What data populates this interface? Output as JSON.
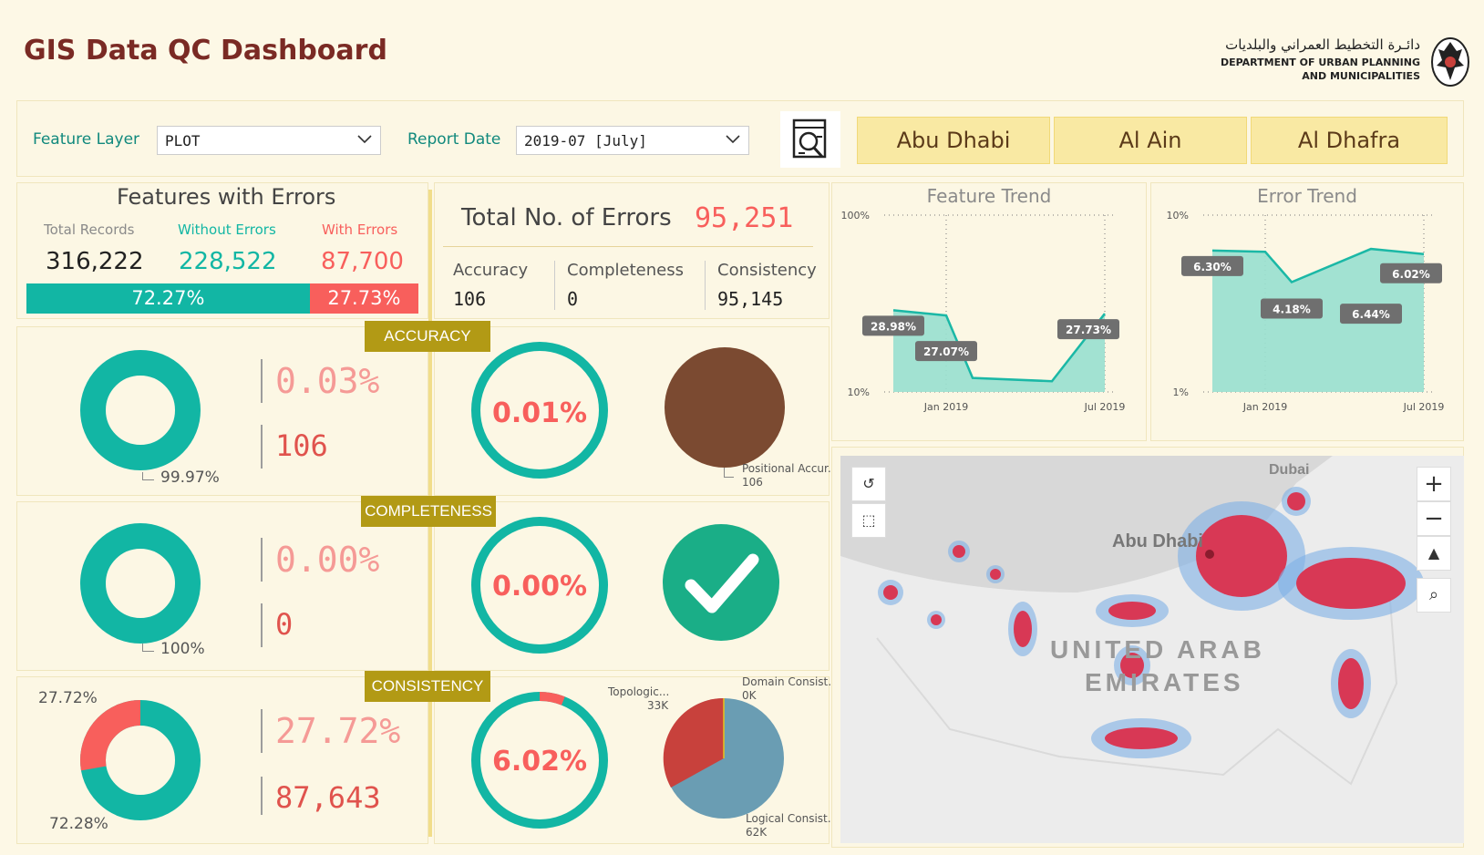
{
  "header": {
    "title": "GIS Data QC Dashboard",
    "org_ar": "دائـرة التخطيط العمراني والبلديات",
    "org_en_1": "DEPARTMENT OF URBAN PLANNING",
    "org_en_2": "AND MUNICIPALITIES"
  },
  "filters": {
    "feature_layer_label": "Feature Layer",
    "feature_layer_value": "PLOT",
    "report_date_label": "Report Date",
    "report_date_value": "2019-07 [July]"
  },
  "regions": [
    "Abu Dhabi",
    "Al Ain",
    "Al Dhafra"
  ],
  "features": {
    "title": "Features with Errors",
    "total_label": "Total Records",
    "without_label": "Without Errors",
    "with_label": "With Errors",
    "total": "316,222",
    "without": "228,522",
    "with": "87,700",
    "without_pct": "72.27%",
    "with_pct": "27.73%",
    "without_fraction": 0.7227
  },
  "errors": {
    "title": "Total No. of Errors",
    "total": "95,251",
    "accuracy_label": "Accuracy",
    "completeness_label": "Completeness",
    "consistency_label": "Consistency",
    "accuracy": "106",
    "completeness": "0",
    "consistency": "95,145"
  },
  "accuracy": {
    "label": "ACCURACY",
    "donut_label": "99.97%",
    "pct": "0.03%",
    "count": "106",
    "ring_pct": "0.01%",
    "ring_fraction": 0.0001,
    "pie_label": "Positional Accur...",
    "pie_value": "106"
  },
  "completeness": {
    "label": "COMPLETENESS",
    "donut_label": "100%",
    "pct": "0.00%",
    "count": "0",
    "ring_pct": "0.00%"
  },
  "consistency": {
    "label": "CONSISTENCY",
    "donut_label_top": "27.72%",
    "donut_label_bottom": "72.28%",
    "donut_fraction": 0.2772,
    "pct": "27.72%",
    "count": "87,643",
    "ring_pct": "6.02%",
    "ring_fraction": 0.0602,
    "pie_labels": {
      "topo_name": "Topologic...",
      "topo_value": "33K",
      "domain_name": "Domain Consist...",
      "domain_value": "0K",
      "logical_name": "Logical Consist...",
      "logical_value": "62K"
    }
  },
  "colors": {
    "teal": "#12b6a4",
    "red": "#f85f5c",
    "brown": "#7b4a31",
    "green_check": "#1aae87",
    "gold": "#b29a15",
    "pie_topo": "#c8413c",
    "pie_logical": "#6a9db3",
    "trend_fill": "#98dfcf",
    "trend_line": "#1bb8a6"
  },
  "chart_data": [
    {
      "type": "area",
      "title": "Feature Trend",
      "x_ticks": [
        "Jan 2019",
        "Jul 2019"
      ],
      "y_ticks": [
        "100%",
        "10%"
      ],
      "log_scale": true,
      "points": [
        {
          "x": "2018-11",
          "y": 28.98,
          "label": "28.98%"
        },
        {
          "x": "2019-01",
          "y": 27.07,
          "label": "27.07%"
        },
        {
          "x": "2019-02",
          "y": 12.0,
          "label": ""
        },
        {
          "x": "2019-05",
          "y": 11.5,
          "label": ""
        },
        {
          "x": "2019-07",
          "y": 27.73,
          "label": "27.73%"
        }
      ],
      "ylim": [
        10,
        100
      ]
    },
    {
      "type": "area",
      "title": "Error Trend",
      "x_ticks": [
        "Jan 2019",
        "Jul 2019"
      ],
      "y_ticks": [
        "10%",
        "1%"
      ],
      "log_scale": true,
      "points": [
        {
          "x": "2018-11",
          "y": 6.3,
          "label": "6.30%"
        },
        {
          "x": "2019-01",
          "y": 6.2,
          "label": ""
        },
        {
          "x": "2019-02",
          "y": 4.18,
          "label": "4.18%"
        },
        {
          "x": "2019-05",
          "y": 6.44,
          "label": "6.44%"
        },
        {
          "x": "2019-07",
          "y": 6.02,
          "label": "6.02%"
        }
      ],
      "ylim": [
        1,
        10
      ]
    }
  ],
  "map": {
    "labels": [
      "Dubai",
      "Abu Dhabi",
      "UNITED ARAB",
      "EMIRATES"
    ],
    "zoom_in": "+",
    "zoom_out": "−"
  }
}
